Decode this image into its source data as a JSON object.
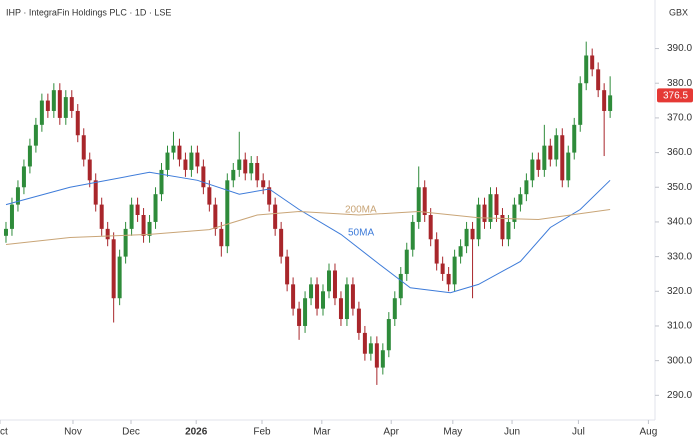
{
  "chart_data": {
    "type": "candlestick",
    "title": "IHP · IntegraFin Holdings PLC · 1D · LSE",
    "currency": "GBX",
    "up_color": "#2e8b3a",
    "down_color": "#a8262b",
    "open": [
      336,
      338,
      345,
      350,
      356,
      362,
      368,
      375,
      372,
      378,
      370,
      376,
      372,
      365,
      358,
      352,
      345,
      338,
      335,
      318,
      330,
      338,
      345,
      342,
      336,
      340,
      348,
      355,
      360,
      362,
      358,
      355,
      360,
      356,
      350,
      345,
      338,
      333,
      352,
      355,
      358,
      354,
      357,
      352,
      350,
      345,
      338,
      330,
      322,
      315,
      310,
      318,
      322,
      315,
      320,
      326,
      318,
      312,
      322,
      315,
      308,
      302,
      305,
      298,
      303,
      312,
      318,
      325,
      332,
      340,
      350,
      342,
      335,
      328,
      325,
      322,
      330,
      333,
      338,
      335,
      345,
      340,
      348,
      342,
      335,
      340,
      345,
      348,
      352,
      358,
      355,
      362,
      358,
      365,
      352,
      360,
      368,
      380,
      388,
      384,
      378,
      372
    ],
    "high": [
      340,
      347,
      352,
      358,
      364,
      370,
      377,
      377,
      380,
      380,
      378,
      378,
      374,
      367,
      360,
      354,
      347,
      340,
      337,
      332,
      340,
      347,
      347,
      344,
      342,
      350,
      357,
      362,
      366,
      364,
      360,
      362,
      362,
      358,
      352,
      347,
      340,
      354,
      357,
      366,
      360,
      359,
      359,
      354,
      352,
      347,
      340,
      332,
      324,
      317,
      320,
      324,
      324,
      322,
      328,
      328,
      320,
      324,
      324,
      317,
      310,
      307,
      307,
      305,
      314,
      320,
      327,
      334,
      342,
      356,
      352,
      344,
      337,
      330,
      327,
      332,
      335,
      340,
      340,
      347,
      347,
      350,
      350,
      344,
      342,
      347,
      350,
      354,
      360,
      360,
      368,
      364,
      367,
      367,
      362,
      370,
      382,
      392,
      390,
      386,
      380,
      382
    ],
    "low": [
      334,
      336,
      343,
      348,
      354,
      360,
      366,
      370,
      370,
      368,
      368,
      370,
      363,
      356,
      350,
      343,
      336,
      333,
      311,
      316,
      328,
      336,
      340,
      334,
      334,
      338,
      346,
      353,
      358,
      356,
      353,
      353,
      354,
      348,
      343,
      336,
      330,
      331,
      350,
      353,
      352,
      352,
      350,
      348,
      343,
      336,
      328,
      320,
      313,
      306,
      308,
      316,
      313,
      313,
      318,
      316,
      310,
      310,
      313,
      306,
      300,
      300,
      293,
      296,
      301,
      310,
      316,
      323,
      330,
      338,
      340,
      333,
      326,
      323,
      320,
      320,
      328,
      331,
      318,
      333,
      338,
      338,
      340,
      333,
      333,
      338,
      343,
      346,
      350,
      353,
      353,
      356,
      356,
      350,
      350,
      358,
      366,
      378,
      382,
      376,
      359,
      370
    ],
    "close": [
      338,
      345,
      350,
      356,
      362,
      368,
      375,
      372,
      378,
      370,
      376,
      372,
      365,
      358,
      352,
      345,
      338,
      335,
      318,
      330,
      338,
      345,
      342,
      336,
      340,
      348,
      355,
      360,
      362,
      358,
      355,
      360,
      356,
      350,
      345,
      338,
      333,
      352,
      355,
      358,
      354,
      357,
      352,
      350,
      345,
      338,
      330,
      322,
      315,
      310,
      318,
      322,
      315,
      320,
      326,
      318,
      312,
      322,
      315,
      308,
      302,
      305,
      298,
      303,
      312,
      318,
      325,
      332,
      340,
      350,
      342,
      335,
      328,
      325,
      322,
      330,
      333,
      338,
      335,
      345,
      340,
      348,
      342,
      335,
      340,
      345,
      348,
      352,
      358,
      355,
      362,
      358,
      365,
      352,
      360,
      368,
      380,
      388,
      384,
      378,
      372,
      376.5
    ],
    "last_price": 376.5,
    "last_price_color": "#e53935",
    "series": [
      {
        "name": "50MA",
        "color": "#3d7bd9",
        "x": [
          0,
          10.7,
          24,
          32,
          39,
          44,
          49,
          56,
          62.5,
          67.6,
          74.3,
          79,
          86,
          91,
          96,
          101
        ],
        "values": [
          345,
          350,
          354.3,
          352,
          348,
          349.5,
          343.6,
          336.4,
          327.7,
          321,
          319.6,
          322,
          328.6,
          338.4,
          343.6,
          352
        ]
      },
      {
        "name": "200MA",
        "color": "#c9a577",
        "x": [
          0,
          10.7,
          24,
          34,
          42,
          49,
          59,
          69,
          79,
          89,
          101
        ],
        "values": [
          333.5,
          335.5,
          336.4,
          337.8,
          342,
          343,
          342,
          343,
          341.2,
          340.7,
          343.6
        ]
      }
    ],
    "xlim": [
      -1,
      108.5
    ],
    "xticks": [
      {
        "value": -1,
        "label": "Oct"
      },
      {
        "value": 11.2,
        "label": "Nov"
      },
      {
        "value": 20.9,
        "label": "Dec"
      },
      {
        "value": 31.8,
        "label": "2026"
      },
      {
        "value": 42.8,
        "label": "Feb"
      },
      {
        "value": 52.8,
        "label": "Mar"
      },
      {
        "value": 64.4,
        "label": "Apr"
      },
      {
        "value": 74.7,
        "label": "May"
      },
      {
        "value": 84.6,
        "label": "Jun"
      },
      {
        "value": 95.7,
        "label": "Jul"
      },
      {
        "value": 107.4,
        "label": "Aug"
      }
    ],
    "ylim": [
      280,
      404
    ],
    "yticks": [
      {
        "value": 290,
        "label": "290.0"
      },
      {
        "value": 300,
        "label": "300.0"
      },
      {
        "value": 310,
        "label": "310.0"
      },
      {
        "value": 320,
        "label": "320.0"
      },
      {
        "value": 330,
        "label": "330.0"
      },
      {
        "value": 340,
        "label": "340.0"
      },
      {
        "value": 350,
        "label": "350.0"
      },
      {
        "value": 360,
        "label": "360.0"
      },
      {
        "value": 370,
        "label": "370.0"
      },
      {
        "value": 380,
        "label": "380.0"
      },
      {
        "value": 390,
        "label": "390.0"
      }
    ]
  }
}
